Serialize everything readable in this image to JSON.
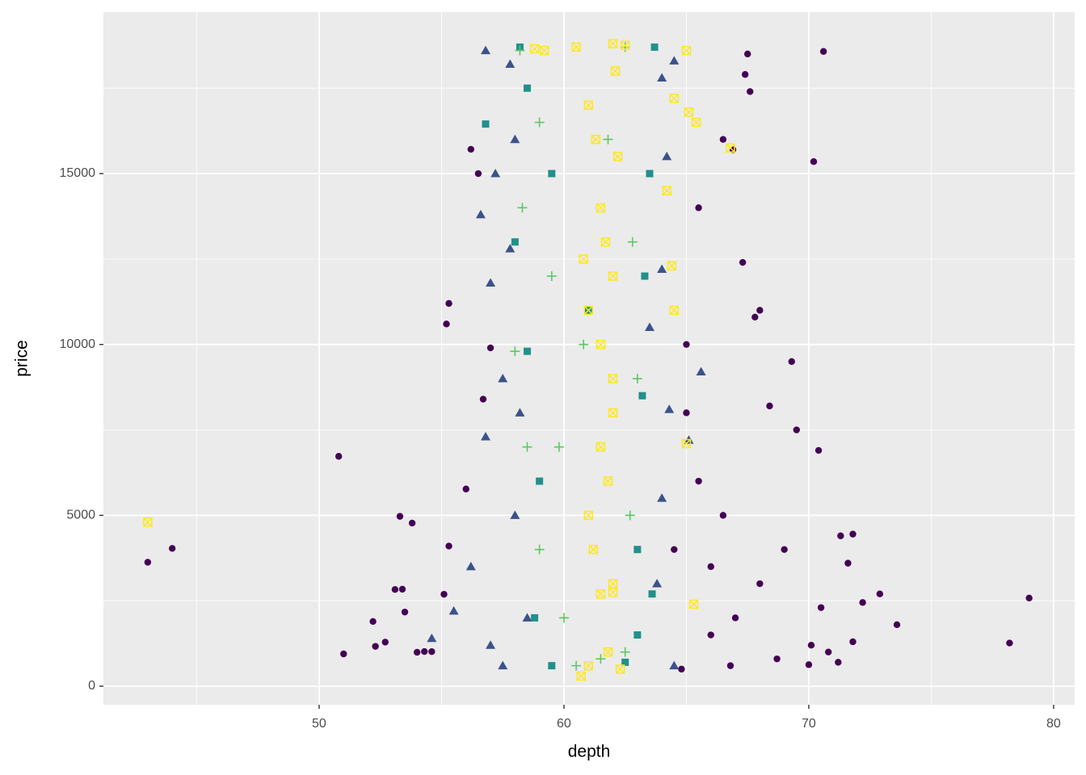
{
  "chart_data": {
    "type": "scatter",
    "x_label": "depth",
    "y_label": "price",
    "xlim": [
      41.19,
      80.86
    ],
    "ylim": [
      -543,
      19725
    ],
    "xticks": [
      50,
      60,
      70,
      80
    ],
    "yticks": [
      0,
      5000,
      10000,
      15000
    ],
    "x_minor_grid": [
      45,
      55,
      65,
      75
    ],
    "y_minor_grid": [
      2500,
      7500,
      12500,
      17500
    ],
    "grid": true,
    "background": "#ebebeb",
    "series": [
      {
        "color": "#440154",
        "shape": "circle",
        "x": [
          43.0,
          44.0,
          50.8,
          51.0,
          52.2,
          52.3,
          52.7,
          53.1,
          53.3,
          53.4,
          53.5,
          53.8,
          54.0,
          54.3,
          54.6,
          55.1,
          55.2,
          55.3,
          55.3,
          56.0,
          56.2,
          56.5,
          56.7,
          57.0,
          66.5,
          66.9,
          67.5,
          67.4,
          67.6,
          70.6,
          70.2,
          69.3,
          69.5,
          70.4,
          71.3,
          71.8,
          72.2,
          72.9,
          73.6,
          78.2,
          79.0,
          71.6,
          70.0,
          70.5,
          70.1,
          67.8,
          68.0,
          67.3,
          68.4,
          69.0,
          68.0,
          67.0,
          66.0,
          66.5,
          65.5,
          65.0,
          65.5,
          65.0,
          66.0,
          64.8,
          64.5,
          66.8,
          68.7,
          71.2,
          70.8,
          71.8
        ],
        "values": [
          3627,
          4032,
          6727,
          945,
          1895,
          1166,
          1290,
          2830,
          4970,
          2838,
          2170,
          4773,
          993,
          1015,
          1011,
          2690,
          10600,
          11200,
          4100,
          5770,
          15710,
          15000,
          8400,
          9900,
          16000,
          15700,
          18500,
          17900,
          17400,
          18574,
          15350,
          9500,
          7500,
          6900,
          4400,
          4450,
          2450,
          2700,
          1800,
          1262,
          2579,
          3600,
          630,
          2300,
          1200,
          10800,
          11000,
          12400,
          8200,
          4000,
          3000,
          2000,
          1500,
          5000,
          6000,
          8000,
          14000,
          10000,
          3500,
          500,
          4000,
          600,
          800,
          700,
          1000,
          1300
        ]
      },
      {
        "color": "#3b528b",
        "shape": "triangle",
        "x": [
          54.6,
          55.5,
          56.2,
          56.8,
          56.6,
          57.2,
          57.0,
          56.8,
          57.5,
          58.0,
          57.8,
          64.2,
          64.0,
          64.3,
          65.1,
          65.6,
          64.5,
          57.5,
          58.0,
          63.8,
          64.5,
          57.0,
          64.0,
          57.8,
          63.5,
          58.2,
          64.0,
          58.5
        ],
        "values": [
          1400,
          2200,
          3500,
          18600,
          13800,
          15000,
          11800,
          7300,
          9000,
          16000,
          12800,
          15500,
          12200,
          8100,
          7200,
          9200,
          18300,
          600,
          5000,
          3000,
          600,
          1200,
          17800,
          18200,
          10500,
          8000,
          5500,
          2000
        ]
      },
      {
        "color": "#21908c",
        "shape": "square",
        "x": [
          56.8,
          58.2,
          58.0,
          58.5,
          59.0,
          63.7,
          63.5,
          63.3,
          63.2,
          63.0,
          58.8,
          59.5,
          62.5,
          63.0,
          61.0,
          59.5,
          63.6,
          58.5
        ],
        "values": [
          16450,
          18700,
          13000,
          9800,
          6000,
          18700,
          15000,
          12000,
          8500,
          4000,
          2000,
          600,
          700,
          1500,
          11000,
          15000,
          2700,
          17500
        ]
      },
      {
        "color": "#5dc863",
        "shape": "plus",
        "x": [
          58.2,
          58.3,
          58.0,
          58.5,
          59.0,
          59.0,
          59.5,
          60.0,
          62.5,
          62.8,
          63.0,
          62.7,
          62.5,
          61.5,
          60.5,
          61.8,
          60.8,
          59.8
        ],
        "values": [
          18600,
          14000,
          9800,
          7000,
          4000,
          16500,
          12000,
          2000,
          18700,
          13000,
          9000,
          5000,
          1000,
          800,
          600,
          16000,
          10000,
          7000
        ]
      },
      {
        "color": "#fde725",
        "shape": "square-x",
        "x": [
          43.0,
          58.8,
          59.2,
          60.5,
          62.0,
          62.5,
          65.0,
          64.5,
          65.1,
          65.4,
          66.8,
          64.2,
          64.4,
          64.5,
          65.0,
          65.3,
          62.0,
          61.5,
          61.0,
          61.5,
          61.0,
          62.0,
          61.5,
          61.0,
          62.0,
          61.8,
          61.0,
          62.3,
          60.8,
          62.2,
          61.2,
          61.8,
          62.0,
          61.5,
          62.0,
          61.7,
          61.3,
          62.1,
          60.7
        ],
        "values": [
          4800,
          18650,
          18600,
          18700,
          18800,
          18750,
          18600,
          17200,
          16800,
          16500,
          15750,
          14500,
          12300,
          11000,
          7100,
          2400,
          2750,
          2700,
          17000,
          14000,
          11000,
          9000,
          7000,
          5000,
          3000,
          1000,
          600,
          500,
          12500,
          15500,
          4000,
          6000,
          8000,
          10000,
          12000,
          13000,
          16000,
          18000,
          300
        ]
      }
    ]
  }
}
